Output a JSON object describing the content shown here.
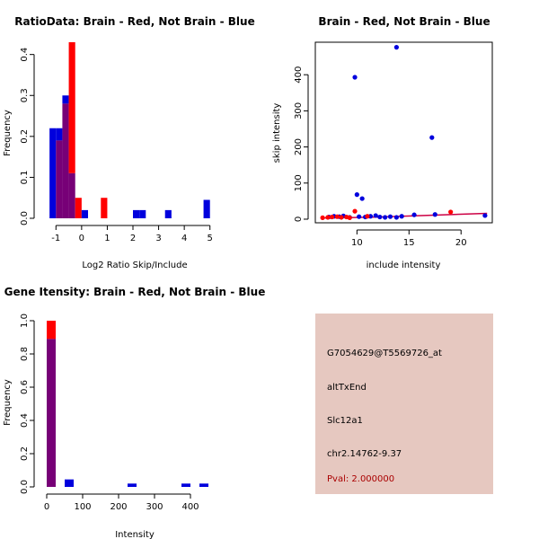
{
  "colors": {
    "red": "#ff0000",
    "blue": "#0000dd",
    "overlap": "#770077",
    "panel_bg": "#e6c8c0",
    "pval": "#aa0000",
    "line": "#cc0044"
  },
  "chart_data": [
    {
      "type": "bar",
      "title": "RatioData: Brain - Red, Not Brain - Blue",
      "xlabel": "Log2 Ratio Skip/Include",
      "ylabel": "Frequency",
      "xlim": [
        -1.5,
        5.5
      ],
      "ylim": [
        0,
        0.43
      ],
      "xticks": [
        -1,
        0,
        1,
        2,
        3,
        4,
        5
      ],
      "yticks": [
        0.0,
        0.1,
        0.2,
        0.3,
        0.4
      ],
      "bin_edges": [
        -1.25,
        -1.0,
        -0.75,
        -0.5,
        -0.25,
        0.0,
        0.25,
        0.5,
        0.75,
        1.0,
        1.25,
        1.5,
        1.75,
        2.0,
        2.25,
        2.5,
        2.75,
        3.0,
        3.25,
        3.5,
        3.75,
        4.0,
        4.25,
        4.5,
        4.75,
        5.0,
        5.25
      ],
      "series": [
        {
          "name": "Brain",
          "color": "red",
          "values": [
            0,
            0.19,
            0.28,
            0.43,
            0.05,
            0,
            0,
            0,
            0.05,
            0,
            0,
            0,
            0,
            0,
            0,
            0,
            0,
            0,
            0,
            0,
            0,
            0,
            0,
            0,
            0,
            0
          ]
        },
        {
          "name": "Not Brain",
          "color": "blue",
          "values": [
            0.22,
            0.22,
            0.3,
            0.11,
            0,
            0.02,
            0,
            0,
            0,
            0,
            0,
            0,
            0,
            0.02,
            0.02,
            0,
            0,
            0,
            0.02,
            0,
            0,
            0,
            0,
            0,
            0.045,
            0
          ]
        }
      ]
    },
    {
      "type": "scatter",
      "title": "Brain - Red, Not Brain - Blue",
      "xlabel": "include intensity",
      "ylabel": "skip intensity",
      "xlim": [
        6,
        23
      ],
      "ylim": [
        -10,
        490
      ],
      "xticks": [
        10,
        15,
        20
      ],
      "yticks": [
        0,
        100,
        200,
        300,
        400
      ],
      "series": [
        {
          "name": "Not Brain",
          "color": "blue",
          "points": [
            [
              13.8,
              476
            ],
            [
              9.8,
              393
            ],
            [
              17.2,
              226
            ],
            [
              10,
              68
            ],
            [
              10.5,
              57
            ],
            [
              7.3,
              6
            ],
            [
              7.8,
              8
            ],
            [
              8.3,
              7
            ],
            [
              8.7,
              9
            ],
            [
              9.3,
              5
            ],
            [
              10.2,
              7
            ],
            [
              10.8,
              6
            ],
            [
              11.3,
              8
            ],
            [
              11.8,
              10
            ],
            [
              12.2,
              6
            ],
            [
              12.7,
              5
            ],
            [
              13.2,
              7
            ],
            [
              13.8,
              5
            ],
            [
              14.3,
              8
            ],
            [
              15.5,
              12
            ],
            [
              17.5,
              13
            ],
            [
              22.3,
              10
            ]
          ]
        },
        {
          "name": "Brain",
          "color": "red",
          "points": [
            [
              6.7,
              4
            ],
            [
              7.2,
              5
            ],
            [
              7.6,
              6
            ],
            [
              8.1,
              7
            ],
            [
              8.5,
              5
            ],
            [
              9,
              6
            ],
            [
              9.3,
              4
            ],
            [
              9.8,
              22
            ],
            [
              11,
              8
            ],
            [
              19,
              20
            ]
          ]
        }
      ],
      "fit_line": [
        [
          6.5,
          3
        ],
        [
          12,
          6
        ],
        [
          22.5,
          16
        ]
      ]
    },
    {
      "type": "bar",
      "title": "Gene Itensity: Brain - Red, Not Brain - Blue",
      "xlabel": "Intensity",
      "ylabel": "Frequency",
      "xlim": [
        -10,
        490
      ],
      "ylim": [
        0,
        1.0
      ],
      "xticks": [
        0,
        100,
        200,
        300,
        400
      ],
      "yticks": [
        0.0,
        0.2,
        0.4,
        0.6,
        0.8,
        1.0
      ],
      "bin_edges": [
        0,
        25,
        50,
        75,
        100,
        125,
        150,
        175,
        200,
        225,
        250,
        275,
        300,
        325,
        350,
        375,
        400,
        425,
        450,
        475
      ],
      "series": [
        {
          "name": "Brain",
          "color": "red",
          "values": [
            1.0,
            0,
            0,
            0,
            0,
            0,
            0,
            0,
            0,
            0,
            0,
            0,
            0,
            0,
            0,
            0,
            0,
            0,
            0
          ]
        },
        {
          "name": "Not Brain",
          "color": "blue",
          "values": [
            0.89,
            0,
            0.045,
            0,
            0,
            0,
            0,
            0,
            0,
            0.02,
            0,
            0,
            0,
            0,
            0,
            0.02,
            0,
            0.02,
            0
          ]
        }
      ]
    }
  ],
  "info_panel": {
    "probe_id": "G7054629@T5569726_at",
    "event_type": "altTxEnd",
    "gene": "Slc12a1",
    "location": "chr2.14762-9.37",
    "pval": "Pval: 2.000000"
  }
}
